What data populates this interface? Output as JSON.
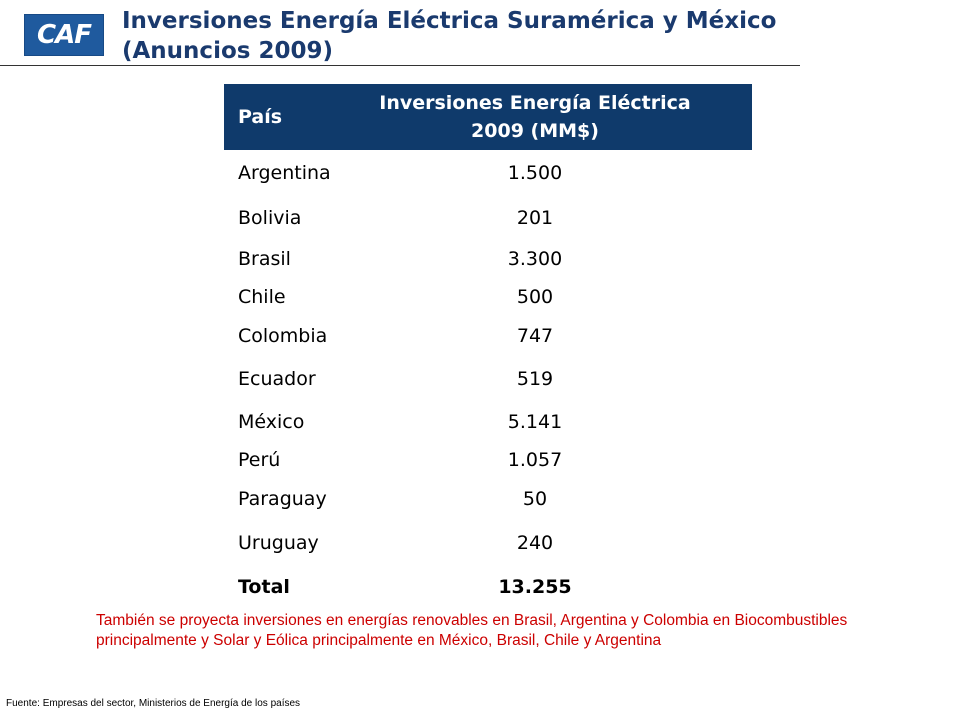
{
  "logo": {
    "text": "CAF"
  },
  "header": {
    "title": "Inversiones Energía Eléctrica Suramérica y México (Anuncios 2009)"
  },
  "table": {
    "col_country": "País",
    "col_investment": "Inversiones Energía Eléctrica 2009 (MM$)",
    "rows": [
      {
        "country": "Argentina",
        "value": "1.500"
      },
      {
        "country": "Bolivia",
        "value": "201"
      },
      {
        "country": "Brasil",
        "value": "3.300"
      },
      {
        "country": "Chile",
        "value": "500"
      },
      {
        "country": "Colombia",
        "value": "747"
      },
      {
        "country": "Ecuador",
        "value": "519"
      },
      {
        "country": "México",
        "value": "5.141"
      },
      {
        "country": "Perú",
        "value": "1.057"
      },
      {
        "country": "Paraguay",
        "value": "50"
      },
      {
        "country": "Uruguay",
        "value": "240"
      }
    ],
    "total_label": "Total",
    "total_value": "13.255"
  },
  "note": "También se proyecta inversiones en energías renovables en Brasil, Argentina y Colombia en Biocombustibles principalmente y Solar y Eólica principalmente en México, Brasil, Chile y Argentina",
  "source": "Fuente: Empresas del sector, Ministerios de Energía de los países",
  "colors": {
    "title": "#1a3a6e",
    "header_bg": "#0f3a6b",
    "logo_bg": "#1f5a9e",
    "note": "#cc0000"
  }
}
